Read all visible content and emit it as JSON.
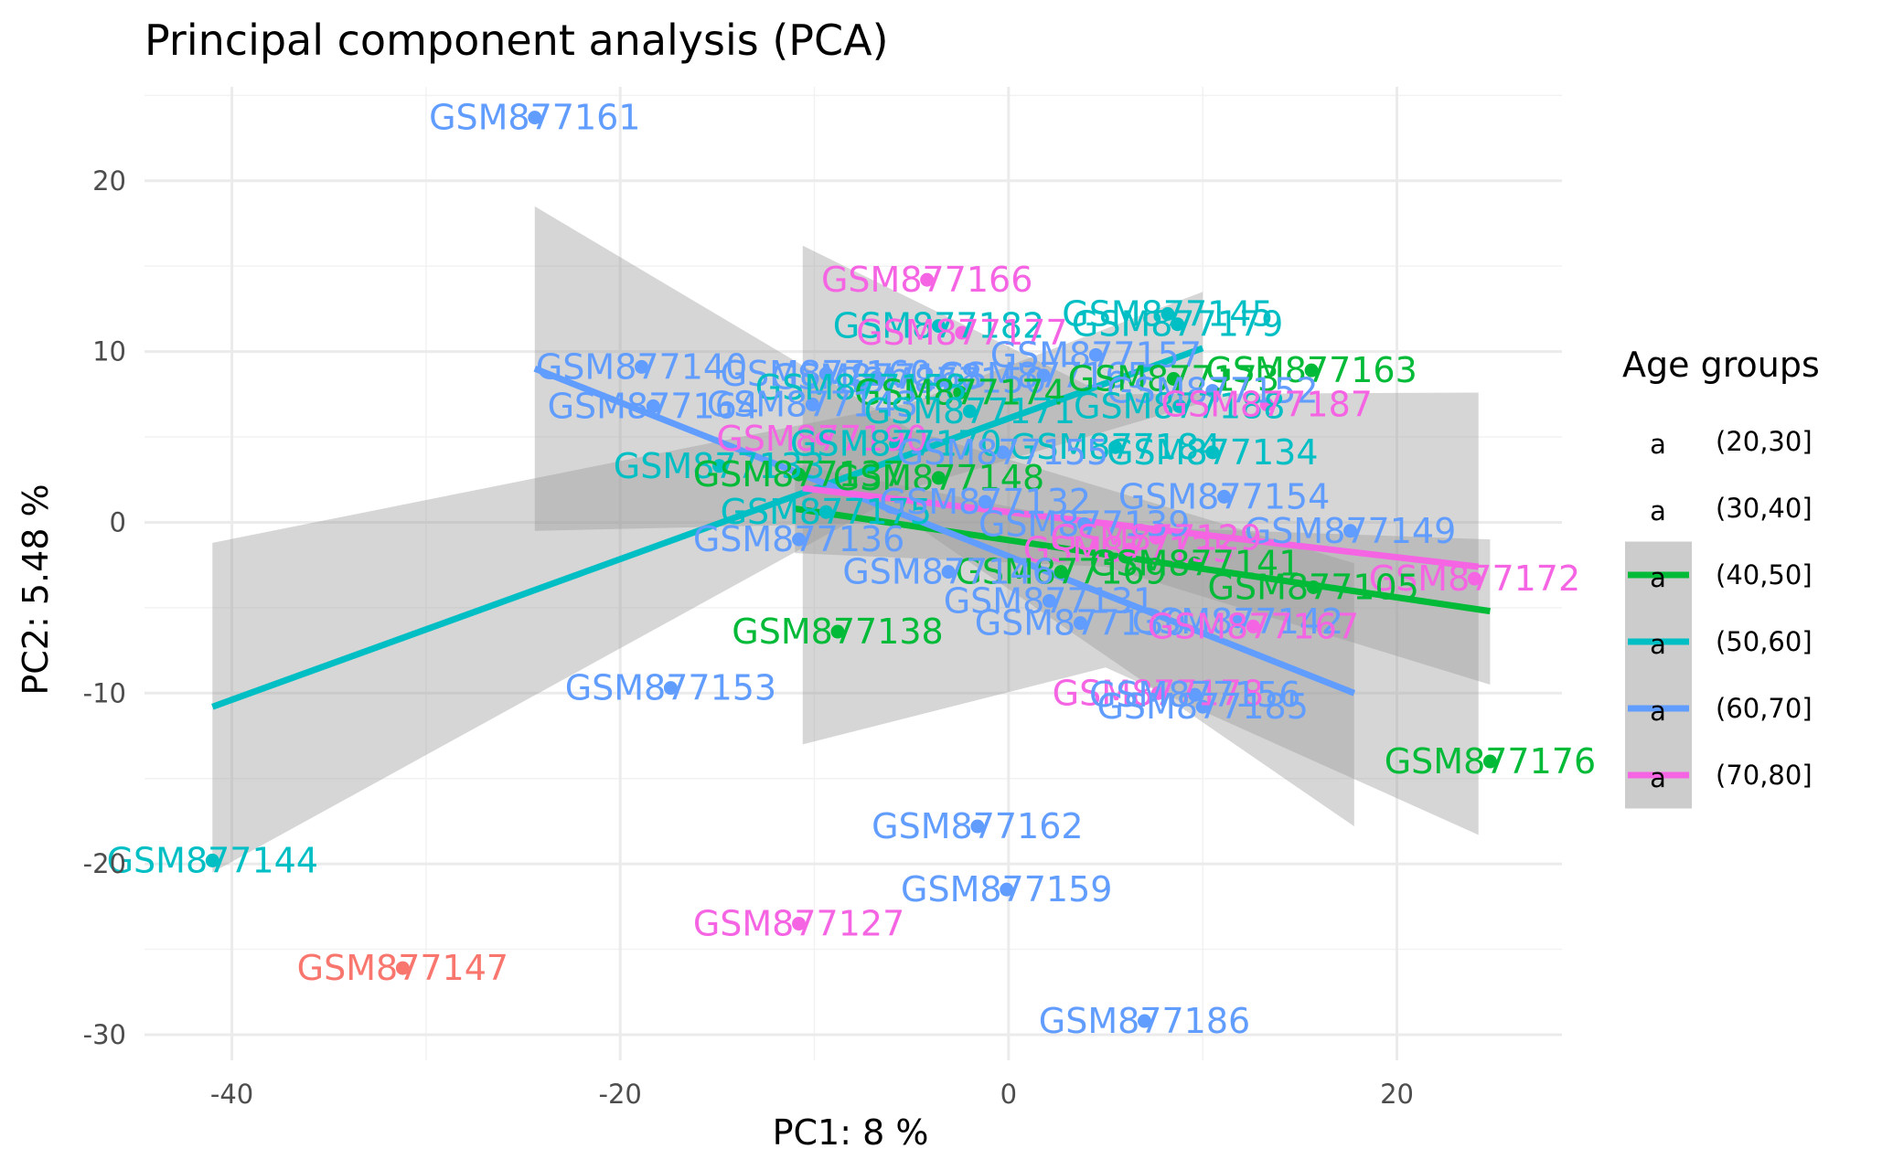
{
  "chart_data": {
    "type": "scatter",
    "title": "Principal component analysis (PCA)",
    "xlabel": "PC1: 8 %",
    "ylabel": "PC2: 5.48 %",
    "xlim": [
      -44.5,
      28.5
    ],
    "ylim": [
      -31.5,
      25.5
    ],
    "x_ticks": [
      -40,
      -20,
      0,
      20
    ],
    "y_ticks": [
      -30,
      -20,
      -10,
      0,
      10,
      20
    ],
    "grid": true,
    "legend": {
      "title": "Age groups",
      "position": "right",
      "entries": [
        {
          "label": "(20,30]",
          "color": "#F8766D",
          "line": false
        },
        {
          "label": "(30,40]",
          "color": "#B79F00",
          "line": false
        },
        {
          "label": "(40,50]",
          "color": "#00BA38",
          "line": true
        },
        {
          "label": "(50,60]",
          "color": "#00BFC4",
          "line": true
        },
        {
          "label": "(60,70]",
          "color": "#619CFF",
          "line": true
        },
        {
          "label": "(70,80]",
          "color": "#F564E3",
          "line": true
        }
      ]
    },
    "regression_lines": [
      {
        "group": "(40,50]",
        "color": "#00BA38",
        "x": [
          -11.0,
          24.8
        ],
        "y": [
          0.8,
          -5.2
        ],
        "band": [
          [
            -11.0,
            -1.8,
            3.4
          ],
          [
            5.0,
            -2.6,
            -0.2
          ],
          [
            24.8,
            -9.5,
            -1.0
          ]
        ]
      },
      {
        "group": "(50,60]",
        "color": "#00BFC4",
        "x": [
          -41.0,
          10.0
        ],
        "y": [
          -10.8,
          10.2
        ],
        "band": [
          [
            -41.0,
            -20.5,
            -1.2
          ],
          [
            -5.0,
            2.0,
            7.0
          ],
          [
            10.0,
            7.0,
            13.5
          ]
        ]
      },
      {
        "group": "(60,70]",
        "color": "#619CFF",
        "x": [
          -24.4,
          17.8
        ],
        "y": [
          9.0,
          -10.0
        ],
        "band": [
          [
            -24.4,
            -0.5,
            18.5
          ],
          [
            -5.0,
            0.0,
            5.4
          ],
          [
            17.8,
            -17.8,
            -2.4
          ]
        ]
      },
      {
        "group": "(70,80]",
        "color": "#F564E3",
        "x": [
          -10.6,
          24.2
        ],
        "y": [
          2.0,
          -2.6
        ],
        "band": [
          [
            -10.6,
            -13.0,
            16.2
          ],
          [
            5.0,
            -8.5,
            7.5
          ],
          [
            24.2,
            -18.3,
            7.6
          ]
        ]
      }
    ],
    "points": [
      {
        "label": "GSM877161",
        "group": "(60,70]",
        "x": -24.4,
        "y": 23.7,
        "color": "#619CFF"
      },
      {
        "label": "GSM877166",
        "group": "(70,80]",
        "x": -4.2,
        "y": 14.2,
        "color": "#F564E3"
      },
      {
        "label": "GSM877145",
        "group": "(50,60]",
        "x": 8.2,
        "y": 12.2,
        "color": "#00BFC4"
      },
      {
        "label": "GSM877179",
        "group": "(50,60]",
        "x": 8.7,
        "y": 11.6,
        "color": "#00BFC4"
      },
      {
        "label": "GSM877182",
        "group": "(50,60]",
        "x": -3.6,
        "y": 11.5,
        "color": "#00BFC4"
      },
      {
        "label": "GSM877177",
        "group": "(70,80]",
        "x": -2.4,
        "y": 11.1,
        "color": "#F564E3"
      },
      {
        "label": "GSM877157",
        "group": "(60,70]",
        "x": 4.5,
        "y": 9.8,
        "color": "#619CFF"
      },
      {
        "label": "GSM877140",
        "group": "(60,70]",
        "x": -18.9,
        "y": 9.1,
        "color": "#619CFF"
      },
      {
        "label": "GSM877163",
        "group": "(40,50]",
        "x": 15.6,
        "y": 8.9,
        "color": "#00BA38"
      },
      {
        "label": "GSM877160",
        "group": "(60,70]",
        "x": -9.4,
        "y": 8.7,
        "color": "#619CFF"
      },
      {
        "label": "GSM877168",
        "group": "(60,70]",
        "x": -6.8,
        "y": 8.5,
        "color": "#619CFF"
      },
      {
        "label": "GSM877150",
        "group": "(60,70]",
        "x": -3.5,
        "y": 8.3,
        "color": "#619CFF"
      },
      {
        "label": "GSM877165",
        "group": "(60,70]",
        "x": 1.8,
        "y": 8.6,
        "color": "#619CFF"
      },
      {
        "label": "GSM877173",
        "group": "(40,50]",
        "x": 8.5,
        "y": 8.4,
        "color": "#00BA38"
      },
      {
        "label": "GSM877158",
        "group": "(50,60]",
        "x": -7.6,
        "y": 7.9,
        "color": "#00BFC4"
      },
      {
        "label": "GSM877174",
        "group": "(40,50]",
        "x": -2.5,
        "y": 7.6,
        "color": "#00BA38"
      },
      {
        "label": "GSM877152",
        "group": "(60,70]",
        "x": 10.5,
        "y": 7.7,
        "color": "#619CFF"
      },
      {
        "label": "GSM877164",
        "group": "(60,70]",
        "x": -18.3,
        "y": 6.8,
        "color": "#619CFF"
      },
      {
        "label": "GSM877143",
        "group": "(60,70]",
        "x": -10.1,
        "y": 6.9,
        "color": "#619CFF"
      },
      {
        "label": "GSM877171",
        "group": "(50,60]",
        "x": -2.0,
        "y": 6.5,
        "color": "#00BFC4"
      },
      {
        "label": "GSM877188",
        "group": "(50,60]",
        "x": 8.8,
        "y": 6.8,
        "color": "#00BFC4"
      },
      {
        "label": "GSM877187",
        "group": "(70,80]",
        "x": 13.3,
        "y": 6.9,
        "color": "#F564E3"
      },
      {
        "label": "GSM877190",
        "group": "(70,80]",
        "x": -9.6,
        "y": 4.9,
        "color": "#F564E3"
      },
      {
        "label": "GSM877170",
        "group": "(50,60]",
        "x": -5.8,
        "y": 4.6,
        "color": "#00BFC4"
      },
      {
        "label": "GSM877184",
        "group": "(50,60]",
        "x": 5.5,
        "y": 4.4,
        "color": "#00BFC4"
      },
      {
        "label": "GSM877134",
        "group": "(50,60]",
        "x": 10.5,
        "y": 4.1,
        "color": "#00BFC4"
      },
      {
        "label": "GSM877155",
        "group": "(60,70]",
        "x": -0.3,
        "y": 4.1,
        "color": "#619CFF"
      },
      {
        "label": "GSM877133",
        "group": "(50,60]",
        "x": -14.9,
        "y": 3.3,
        "color": "#00BFC4"
      },
      {
        "label": "GSM877137",
        "group": "(40,50]",
        "x": -10.8,
        "y": 2.8,
        "color": "#00BA38"
      },
      {
        "label": "GSM877148",
        "group": "(40,50]",
        "x": -3.6,
        "y": 2.6,
        "color": "#00BA38"
      },
      {
        "label": "GSM877154",
        "group": "(60,70]",
        "x": 11.1,
        "y": 1.5,
        "color": "#619CFF"
      },
      {
        "label": "GSM877175",
        "group": "(50,60]",
        "x": -9.4,
        "y": 0.6,
        "color": "#00BFC4"
      },
      {
        "label": "GSM877132",
        "group": "(60,70]",
        "x": -1.2,
        "y": 1.2,
        "color": "#619CFF"
      },
      {
        "label": "GSM877139",
        "group": "(60,70]",
        "x": 3.9,
        "y": -0.1,
        "color": "#619CFF"
      },
      {
        "label": "GSM877149",
        "group": "(60,70]",
        "x": 17.6,
        "y": -0.5,
        "color": "#619CFF"
      },
      {
        "label": "GSM877129",
        "group": "(70,80]",
        "x": 7.6,
        "y": -0.9,
        "color": "#F564E3"
      },
      {
        "label": "GSM877136",
        "group": "(60,70]",
        "x": -10.8,
        "y": -1.0,
        "color": "#619CFF"
      },
      {
        "label": "GSM877135",
        "group": "(70,80]",
        "x": 6.2,
        "y": -1.6,
        "color": "#F564E3"
      },
      {
        "label": "GSM877141",
        "group": "(40,50]",
        "x": 9.6,
        "y": -2.4,
        "color": "#00BA38"
      },
      {
        "label": "GSM877169",
        "group": "(40,50]",
        "x": 2.7,
        "y": -2.9,
        "color": "#00BA38"
      },
      {
        "label": "GSM877146",
        "group": "(60,70]",
        "x": -3.1,
        "y": -2.9,
        "color": "#619CFF"
      },
      {
        "label": "GSM877172",
        "group": "(70,80]",
        "x": 24.0,
        "y": -3.3,
        "color": "#F564E3"
      },
      {
        "label": "GSM877105",
        "group": "(40,50]",
        "x": 15.7,
        "y": -3.8,
        "color": "#00BA38"
      },
      {
        "label": "GSM877131",
        "group": "(60,70]",
        "x": 2.1,
        "y": -4.6,
        "color": "#619CFF"
      },
      {
        "label": "GSM877130",
        "group": "(60,70]",
        "x": 3.7,
        "y": -5.9,
        "color": "#619CFF"
      },
      {
        "label": "GSM877142",
        "group": "(60,70]",
        "x": 11.8,
        "y": -5.8,
        "color": "#619CFF"
      },
      {
        "label": "GSM877167",
        "group": "(70,80]",
        "x": 12.6,
        "y": -6.1,
        "color": "#F564E3"
      },
      {
        "label": "GSM877138",
        "group": "(40,50]",
        "x": -8.8,
        "y": -6.4,
        "color": "#00BA38"
      },
      {
        "label": "GSM877153",
        "group": "(60,70]",
        "x": -17.4,
        "y": -9.7,
        "color": "#619CFF"
      },
      {
        "label": "GSM877178",
        "group": "(70,80]",
        "x": 7.7,
        "y": -10.0,
        "color": "#F564E3"
      },
      {
        "label": "GSM877156",
        "group": "(60,70]",
        "x": 9.6,
        "y": -10.1,
        "color": "#619CFF"
      },
      {
        "label": "GSM877185",
        "group": "(60,70]",
        "x": 10.0,
        "y": -10.8,
        "color": "#619CFF"
      },
      {
        "label": "GSM877176",
        "group": "(40,50]",
        "x": 24.8,
        "y": -14.0,
        "color": "#00BA38"
      },
      {
        "label": "GSM877162",
        "group": "(60,70]",
        "x": -1.6,
        "y": -17.8,
        "color": "#619CFF"
      },
      {
        "label": "GSM877144",
        "group": "(50,60]",
        "x": -41.0,
        "y": -19.8,
        "color": "#00BFC4"
      },
      {
        "label": "GSM877159",
        "group": "(60,70]",
        "x": -0.1,
        "y": -21.5,
        "color": "#619CFF"
      },
      {
        "label": "GSM877127",
        "group": "(70,80]",
        "x": -10.8,
        "y": -23.5,
        "color": "#F564E3"
      },
      {
        "label": "GSM877147",
        "group": "(20,30]",
        "x": -31.2,
        "y": -26.1,
        "color": "#F8766D"
      },
      {
        "label": "GSM877186",
        "group": "(60,70]",
        "x": 7.0,
        "y": -29.2,
        "color": "#619CFF"
      }
    ]
  }
}
